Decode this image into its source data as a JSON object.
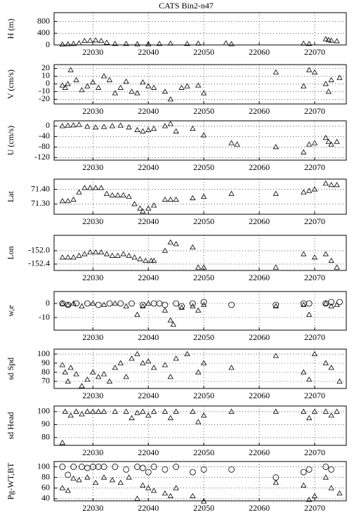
{
  "chart_data": [
    {
      "type": "scatter",
      "title": "CATS Bin2-n47",
      "ylabel": "H (m)",
      "xlim": [
        22023,
        22075.7
      ],
      "xticks": [
        22030,
        22040,
        22050,
        22060,
        22070
      ],
      "ylim": [
        0,
        1100
      ],
      "yticks": [
        0,
        400,
        800
      ],
      "grid": true,
      "series": [
        {
          "marker": "triangle",
          "color": "#000000",
          "x": [
            22024.5,
            22025.5,
            22026.5,
            22027.5,
            22028.5,
            22029.5,
            22030.5,
            22031.5,
            22032.5,
            22034,
            22036,
            22038,
            22040,
            22042,
            22044,
            22047,
            22049,
            22054,
            22055,
            22068,
            22069,
            22072,
            22072.5,
            22073,
            22074
          ],
          "values": [
            20,
            30,
            40,
            60,
            140,
            150,
            160,
            140,
            80,
            40,
            40,
            30,
            30,
            40,
            50,
            40,
            50,
            60,
            30,
            50,
            40,
            200,
            170,
            150,
            130
          ]
        }
      ]
    },
    {
      "type": "scatter",
      "ylabel": "V (cm/s)",
      "xlim": [
        22023,
        22075.7
      ],
      "xticks": [
        22030,
        22040,
        22050,
        22060,
        22070
      ],
      "ylim": [
        -26,
        25
      ],
      "yticks": [
        20,
        10,
        0,
        -10,
        -20
      ],
      "grid": true,
      "series": [
        {
          "marker": "triangle",
          "color": "#000000",
          "x": [
            22024.5,
            22025,
            22025.5,
            22026,
            22027,
            22028,
            22029,
            22030,
            22031,
            22032,
            22033,
            22034,
            22035,
            22036,
            22037,
            22038,
            22039,
            22040,
            22041,
            22043,
            22044,
            22046,
            22047,
            22049,
            22050,
            22063,
            22068,
            22069,
            22070,
            22072,
            22072.5,
            22073,
            22074.5
          ],
          "values": [
            -2,
            -5,
            0,
            18,
            5,
            -8,
            -3,
            2,
            -5,
            10,
            5,
            -12,
            -5,
            3,
            -10,
            -12,
            2,
            -3,
            -5,
            -10,
            -20,
            -5,
            -3,
            -2,
            -12,
            15,
            -3,
            18,
            15,
            0,
            -10,
            5,
            8
          ]
        }
      ]
    },
    {
      "type": "scatter",
      "ylabel": "U (cm/s)",
      "xlim": [
        22023,
        22075.7
      ],
      "xticks": [
        22030,
        22040,
        22050,
        22060,
        22070
      ],
      "ylim": [
        -130,
        20
      ],
      "yticks": [
        0,
        -40,
        -80,
        -120
      ],
      "grid": true,
      "series": [
        {
          "marker": "triangle",
          "color": "#000000",
          "x": [
            22024.5,
            22025.5,
            22026.5,
            22027.5,
            22029,
            22030.5,
            22032,
            22033.5,
            22035,
            22036.5,
            22038,
            22039,
            22040,
            22041,
            22043,
            22044,
            22045,
            22048,
            22050,
            22055,
            22056,
            22063,
            22068,
            22069,
            22070,
            22072,
            22072.5,
            22073,
            22074
          ],
          "values": [
            0,
            2,
            3,
            5,
            -2,
            -5,
            -3,
            0,
            2,
            -5,
            -15,
            -20,
            -15,
            -10,
            0,
            8,
            -20,
            -10,
            -35,
            -65,
            -70,
            -80,
            -100,
            -70,
            -65,
            -45,
            -60,
            -70,
            -60
          ]
        }
      ]
    },
    {
      "type": "scatter",
      "ylabel": "Lat",
      "xlim": [
        22023,
        22075.7
      ],
      "xticks": [
        22030,
        22040,
        22050,
        22060,
        22070
      ],
      "ylim": [
        71.23,
        71.47
      ],
      "yticks": [
        {
          "value": 71.4,
          "label": "71.40"
        },
        {
          "value": 71.3,
          "label": "71.30"
        }
      ],
      "grid": true,
      "series": [
        {
          "marker": "triangle",
          "color": "#000000",
          "x": [
            22024.5,
            22025.5,
            22026.5,
            22027.5,
            22028.5,
            22029.5,
            22030.5,
            22031.5,
            22032.5,
            22033.5,
            22034.5,
            22035.5,
            22036.5,
            22037.5,
            22038.5,
            22039,
            22040,
            22041,
            22043,
            22044,
            22045,
            22048,
            22050,
            22055,
            22063,
            22068,
            22069,
            22070,
            22072,
            22073,
            22074
          ],
          "values": [
            71.32,
            71.32,
            71.33,
            71.38,
            71.41,
            71.41,
            71.41,
            71.41,
            71.37,
            71.36,
            71.36,
            71.36,
            71.35,
            71.3,
            71.27,
            71.25,
            71.27,
            71.29,
            71.33,
            71.33,
            71.33,
            71.34,
            71.35,
            71.37,
            71.37,
            71.38,
            71.39,
            71.4,
            71.44,
            71.43,
            71.43
          ]
        }
      ]
    },
    {
      "type": "scatter",
      "ylabel": "Lon",
      "xlim": [
        22023,
        22075.7
      ],
      "xticks": [
        22030,
        22040,
        22050,
        22060,
        22070
      ],
      "ylim": [
        -152.59,
        -151.54
      ],
      "yticks": [
        {
          "value": -152,
          "label": "-152.0"
        },
        {
          "value": -152.4,
          "label": "-152.4"
        }
      ],
      "grid": true,
      "series": [
        {
          "marker": "triangle",
          "color": "#000000",
          "x": [
            22024.5,
            22025.5,
            22026.5,
            22027.5,
            22028.5,
            22029.5,
            22030.5,
            22031.5,
            22032.5,
            22033.5,
            22034.5,
            22035.5,
            22036.5,
            22037.5,
            22038.5,
            22039.5,
            22040.5,
            22041,
            22043,
            22044,
            22045,
            22048,
            22049,
            22050,
            22063,
            22068,
            22070,
            22072,
            22073,
            22074
          ],
          "values": [
            -152.2,
            -152.2,
            -152.2,
            -152.15,
            -152.1,
            -152.05,
            -152.05,
            -152.05,
            -152.1,
            -152.15,
            -152.15,
            -152.1,
            -152.15,
            -152.2,
            -152.25,
            -152.3,
            -152.3,
            -152.3,
            -152,
            -151.75,
            -151.8,
            -151.9,
            -152.5,
            -152.5,
            -152.5,
            -152.1,
            -152.2,
            -152.1,
            -152.3,
            -152.5
          ]
        }
      ]
    },
    {
      "type": "scatter",
      "ylabel": "w,e",
      "xlim": [
        22023,
        22075.7
      ],
      "xticks": [
        22030,
        22040,
        22050,
        22060,
        22070
      ],
      "ylim": [
        -19,
        8.5
      ],
      "yticks": [
        0,
        -10
      ],
      "grid": true,
      "series": [
        {
          "marker": "triangle",
          "color": "#000000",
          "x": [
            22024.5,
            22025.5,
            22026.5,
            22028,
            22030,
            22032,
            22034,
            22036,
            22038,
            22039,
            22040,
            22043,
            22044,
            22044.5,
            22046,
            22048,
            22049,
            22050,
            22063,
            22068,
            22069,
            22072,
            22073,
            22074
          ],
          "values": [
            0,
            -1,
            0,
            -2,
            0,
            -1,
            0,
            -2,
            -8,
            -2,
            0,
            -5,
            -12,
            -15,
            -3,
            -2,
            -5,
            -1,
            -2,
            -1,
            -8,
            0,
            -2,
            -1
          ]
        },
        {
          "marker": "circle",
          "color": "#000000",
          "x": [
            22024.5,
            22025.5,
            22027,
            22029,
            22031,
            22033,
            22035,
            22037,
            22039,
            22041,
            22042,
            22043,
            22045,
            22046,
            22048,
            22050,
            22055,
            22063,
            22068,
            22069,
            22072,
            22073,
            22074.5
          ],
          "values": [
            0,
            -1,
            0,
            0,
            -1,
            0,
            0,
            0,
            -1,
            0,
            0,
            -1,
            0,
            -2,
            0,
            1,
            -1,
            -1,
            0,
            0,
            0,
            1,
            1
          ]
        }
      ]
    },
    {
      "type": "scatter",
      "ylabel": "sd Spd",
      "xlim": [
        22023,
        22075.7
      ],
      "xticks": [
        22030,
        22040,
        22050,
        22060,
        22070
      ],
      "ylim": [
        62.3,
        105.4
      ],
      "yticks": [
        100,
        90,
        80,
        70
      ],
      "grid": true,
      "series": [
        {
          "marker": "triangle",
          "color": "#000000",
          "x": [
            22024.5,
            22025,
            22025.5,
            22026,
            22027,
            22028,
            22029,
            22030,
            22031,
            22032,
            22033,
            22034,
            22035,
            22036,
            22037,
            22038,
            22039,
            22040,
            22041,
            22043,
            22044,
            22045,
            22047,
            22049,
            22050,
            22055,
            22063,
            22068,
            22069,
            22070,
            22072,
            22073,
            22074.5
          ],
          "values": [
            88,
            80,
            70,
            85,
            78,
            65,
            72,
            80,
            75,
            78,
            70,
            85,
            90,
            75,
            95,
            100,
            90,
            92,
            85,
            88,
            75,
            95,
            100,
            80,
            90,
            85,
            98,
            80,
            72,
            100,
            90,
            85,
            70
          ]
        }
      ]
    },
    {
      "type": "scatter",
      "ylabel": "sd Head",
      "xlim": [
        22023,
        22075.7
      ],
      "xticks": [
        22030,
        22040,
        22050,
        22060,
        22070
      ],
      "ylim": [
        74,
        104.3
      ],
      "yticks": [
        100,
        90,
        80
      ],
      "grid": true,
      "series": [
        {
          "marker": "triangle",
          "color": "#000000",
          "x": [
            22024.5,
            22025,
            22026,
            22027,
            22028,
            22029,
            22030,
            22031,
            22032,
            22034,
            22036,
            22037,
            22038,
            22039,
            22040,
            22041,
            22043,
            22044,
            22045,
            22048,
            22049,
            22050,
            22055,
            22063,
            22068,
            22069,
            22070,
            22072,
            22073,
            22074
          ],
          "values": [
            76,
            100,
            97,
            100,
            98,
            100,
            100,
            100,
            100,
            100,
            100,
            95,
            99,
            100,
            97,
            100,
            100,
            95,
            100,
            100,
            92,
            97,
            100,
            100,
            100,
            95,
            100,
            100,
            97,
            100
          ]
        }
      ]
    },
    {
      "type": "scatter",
      "ylabel": "Pg-WT,BT",
      "xlim": [
        22023,
        22075.7
      ],
      "xticks": [
        22030,
        22040,
        22050,
        22060,
        22070
      ],
      "ylim": [
        36,
        110
      ],
      "yticks": [
        100,
        80,
        60,
        40
      ],
      "grid": true,
      "series": [
        {
          "marker": "triangle",
          "color": "#000000",
          "x": [
            22024.5,
            22025.5,
            22026.5,
            22027.5,
            22029,
            22030.5,
            22032,
            22033.5,
            22035,
            22036.5,
            22038,
            22039,
            22040,
            22041,
            22043,
            22044,
            22045,
            22048,
            22050,
            22063,
            22068,
            22069,
            22070,
            22072,
            22073,
            22074.5
          ],
          "values": [
            60,
            55,
            78,
            75,
            80,
            70,
            80,
            75,
            70,
            80,
            40,
            65,
            60,
            55,
            50,
            45,
            60,
            45,
            35,
            70,
            65,
            38,
            45,
            80,
            60,
            50
          ]
        },
        {
          "marker": "circle",
          "color": "#000000",
          "x": [
            22024.5,
            22025.5,
            22026.5,
            22028,
            22029,
            22030,
            22031,
            22032,
            22034,
            22036,
            22038,
            22039,
            22040,
            22041,
            22043,
            22045,
            22048,
            22050,
            22055,
            22063,
            22068,
            22069,
            22072,
            22073
          ],
          "values": [
            100,
            85,
            100,
            100,
            98,
            100,
            100,
            100,
            100,
            95,
            100,
            98,
            90,
            100,
            95,
            100,
            90,
            95,
            95,
            80,
            90,
            95,
            100,
            95
          ]
        }
      ]
    }
  ]
}
